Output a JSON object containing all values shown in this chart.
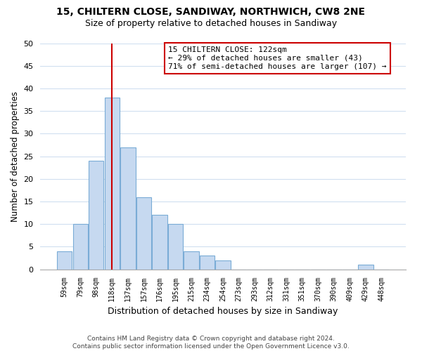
{
  "title_line1": "15, CHILTERN CLOSE, SANDIWAY, NORTHWICH, CW8 2NE",
  "title_line2": "Size of property relative to detached houses in Sandiway",
  "xlabel": "Distribution of detached houses by size in Sandiway",
  "ylabel": "Number of detached properties",
  "bin_labels": [
    "59sqm",
    "79sqm",
    "98sqm",
    "118sqm",
    "137sqm",
    "157sqm",
    "176sqm",
    "195sqm",
    "215sqm",
    "234sqm",
    "254sqm",
    "273sqm",
    "293sqm",
    "312sqm",
    "331sqm",
    "351sqm",
    "370sqm",
    "390sqm",
    "409sqm",
    "429sqm",
    "448sqm"
  ],
  "bar_heights": [
    4,
    10,
    24,
    38,
    27,
    16,
    12,
    10,
    4,
    3,
    2,
    0,
    0,
    0,
    0,
    0,
    0,
    0,
    0,
    1,
    0
  ],
  "bar_color": "#c6d9f0",
  "bar_edge_color": "#7AACD6",
  "vline_x_index": 3,
  "vline_color": "#cc0000",
  "ylim": [
    0,
    50
  ],
  "yticks": [
    0,
    5,
    10,
    15,
    20,
    25,
    30,
    35,
    40,
    45,
    50
  ],
  "annotation_line1": "15 CHILTERN CLOSE: 122sqm",
  "annotation_line2": "← 29% of detached houses are smaller (43)",
  "annotation_line3": "71% of semi-detached houses are larger (107) →",
  "annotation_box_color": "#ffffff",
  "annotation_box_edge": "#cc0000",
  "footer_line1": "Contains HM Land Registry data © Crown copyright and database right 2024.",
  "footer_line2": "Contains public sector information licensed under the Open Government Licence v3.0.",
  "background_color": "#ffffff",
  "grid_color": "#d0dff0"
}
